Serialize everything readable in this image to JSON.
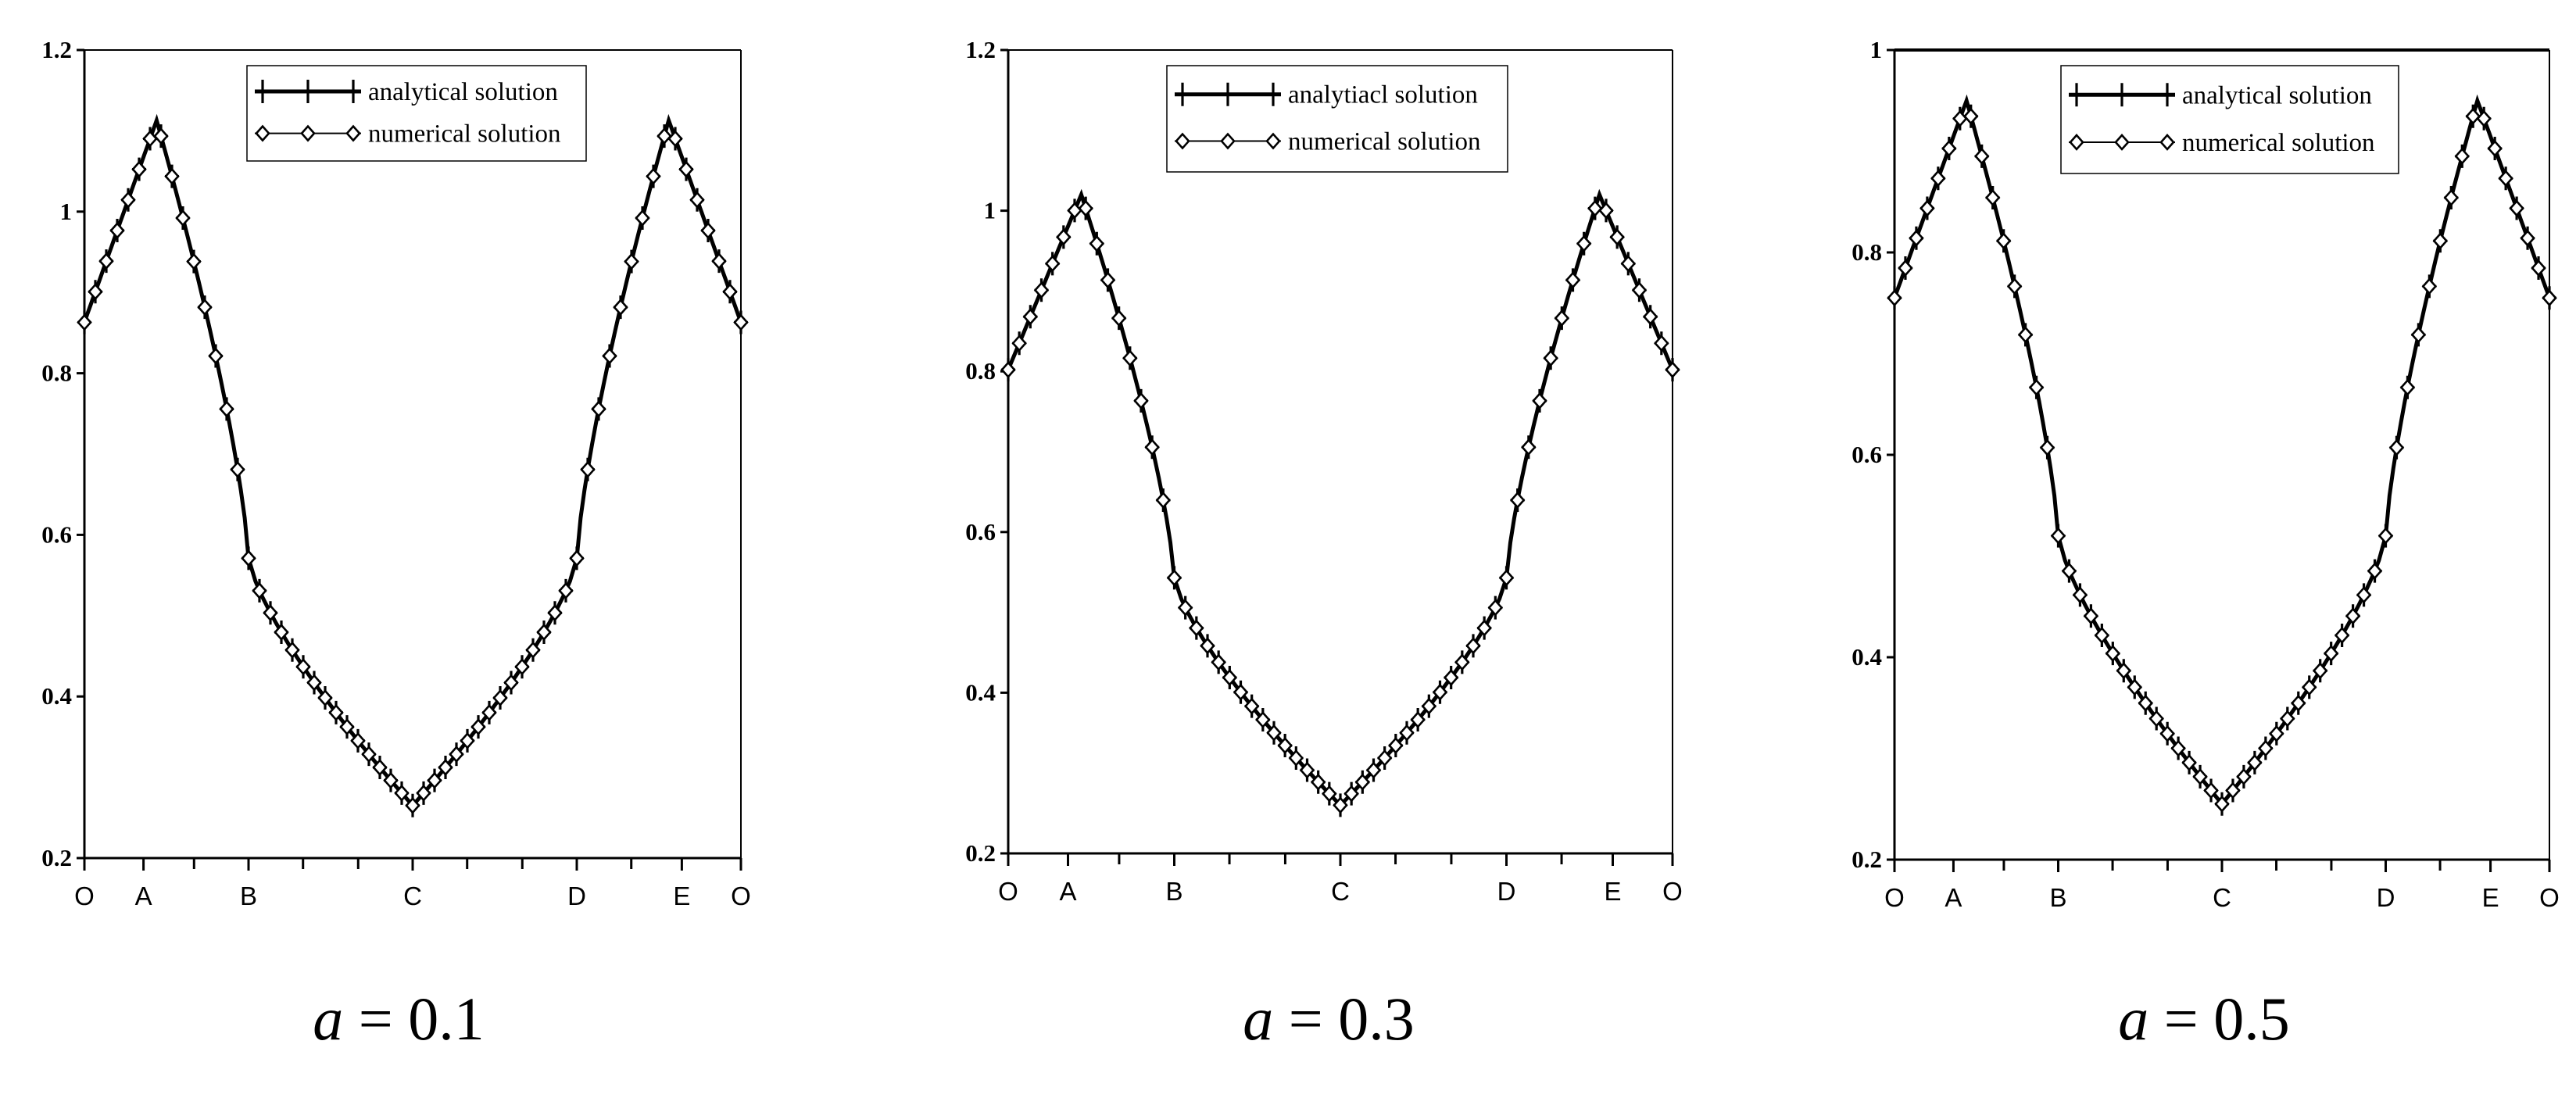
{
  "chart_data": [
    {
      "type": "line",
      "caption": {
        "variable": "a",
        "rest": " = 0.1"
      },
      "ylim": [
        0.2,
        1.2
      ],
      "yticks": [
        0.2,
        0.4,
        0.6,
        0.8,
        1,
        1.2
      ],
      "ytick_labels": [
        "0.2",
        "0.4",
        "0.6",
        "0.8",
        "1",
        "1.2"
      ],
      "x_labels": [
        {
          "text": "O",
          "x": 0
        },
        {
          "text": "A",
          "x": 0.09
        },
        {
          "text": "B",
          "x": 0.25
        },
        {
          "text": "C",
          "x": 0.5
        },
        {
          "text": "D",
          "x": 0.75
        },
        {
          "text": "E",
          "x": 0.91
        },
        {
          "text": "O",
          "x": 1.0
        }
      ],
      "x_minor_ticks": [
        0.167,
        0.333,
        0.417,
        0.583,
        0.667,
        0.833
      ],
      "top_frame_line": false,
      "legend": {
        "position": "top-center",
        "entries": [
          "analytical solution",
          "numerical solution"
        ]
      },
      "series": [
        {
          "name": "analytical solution",
          "marker": "plus",
          "x": [
            0,
            0.11,
            0.25,
            0.5,
            0.75,
            0.89,
            1.0
          ],
          "y": [
            0.863,
            1.113,
            0.571,
            0.265,
            0.571,
            1.113,
            0.863
          ],
          "bezier": [
            false,
            false,
            true,
            false,
            true,
            false,
            false
          ]
        },
        {
          "name": "numerical solution",
          "marker": "diamond",
          "x": [
            0,
            0.11,
            0.25,
            0.5,
            0.75,
            0.89,
            1.0
          ],
          "y": [
            0.863,
            1.113,
            0.571,
            0.265,
            0.571,
            1.113,
            0.863
          ],
          "bezier": [
            false,
            false,
            true,
            false,
            true,
            false,
            false
          ]
        }
      ]
    },
    {
      "type": "line",
      "caption": {
        "variable": "a",
        "rest": " = 0.3"
      },
      "ylim": [
        0.2,
        1.2
      ],
      "yticks": [
        0.2,
        0.4,
        0.6,
        0.8,
        1,
        1.2
      ],
      "ytick_labels": [
        "0.2",
        "0.4",
        "0.6",
        "0.8",
        "1",
        "1.2"
      ],
      "x_labels": [
        {
          "text": "O",
          "x": 0
        },
        {
          "text": "A",
          "x": 0.09
        },
        {
          "text": "B",
          "x": 0.25
        },
        {
          "text": "C",
          "x": 0.5
        },
        {
          "text": "D",
          "x": 0.75
        },
        {
          "text": "E",
          "x": 0.91
        },
        {
          "text": "O",
          "x": 1.0
        }
      ],
      "x_minor_ticks": [
        0.167,
        0.333,
        0.417,
        0.583,
        0.667,
        0.833
      ],
      "top_frame_line": false,
      "legend": {
        "position": "top-center",
        "entries": [
          "analytiacl solution",
          "numerical solution"
        ]
      },
      "series": [
        {
          "name": "analytiacl solution",
          "marker": "plus",
          "x": [
            0,
            0.11,
            0.25,
            0.5,
            0.75,
            0.89,
            1.0
          ],
          "y": [
            0.802,
            1.02,
            0.543,
            0.26,
            0.543,
            1.02,
            0.802
          ],
          "bezier": [
            false,
            false,
            true,
            false,
            true,
            false,
            false
          ]
        },
        {
          "name": "numerical solution",
          "marker": "diamond",
          "x": [
            0,
            0.11,
            0.25,
            0.5,
            0.75,
            0.89,
            1.0
          ],
          "y": [
            0.802,
            1.02,
            0.543,
            0.26,
            0.543,
            1.02,
            0.802
          ],
          "bezier": [
            false,
            false,
            true,
            false,
            true,
            false,
            false
          ]
        }
      ]
    },
    {
      "type": "line",
      "caption": {
        "variable": "a",
        "rest": " = 0.5"
      },
      "ylim": [
        0.2,
        1.0
      ],
      "yticks": [
        0.2,
        0.4,
        0.6,
        0.8,
        1
      ],
      "ytick_labels": [
        "0.2",
        "0.4",
        "0.6",
        "0.8",
        "1"
      ],
      "x_labels": [
        {
          "text": "O",
          "x": 0
        },
        {
          "text": "A",
          "x": 0.09
        },
        {
          "text": "B",
          "x": 0.25
        },
        {
          "text": "C",
          "x": 0.5
        },
        {
          "text": "D",
          "x": 0.75
        },
        {
          "text": "E",
          "x": 0.91
        },
        {
          "text": "O",
          "x": 1.0
        }
      ],
      "x_minor_ticks": [
        0.167,
        0.333,
        0.417,
        0.583,
        0.667,
        0.833
      ],
      "top_frame_line": true,
      "legend": {
        "position": "top-center",
        "entries": [
          "analytical solution",
          "numerical solution"
        ]
      },
      "series": [
        {
          "name": "analytical solution",
          "marker": "plus",
          "x": [
            0,
            0.11,
            0.25,
            0.5,
            0.75,
            0.89,
            1.0
          ],
          "y": [
            0.755,
            0.95,
            0.52,
            0.255,
            0.52,
            0.95,
            0.755
          ],
          "bezier": [
            false,
            false,
            true,
            false,
            true,
            false,
            false
          ]
        },
        {
          "name": "numerical solution",
          "marker": "diamond",
          "x": [
            0,
            0.11,
            0.25,
            0.5,
            0.75,
            0.89,
            1.0
          ],
          "y": [
            0.755,
            0.95,
            0.52,
            0.255,
            0.52,
            0.95,
            0.755
          ],
          "bezier": [
            false,
            false,
            true,
            false,
            true,
            false,
            false
          ]
        }
      ]
    }
  ]
}
